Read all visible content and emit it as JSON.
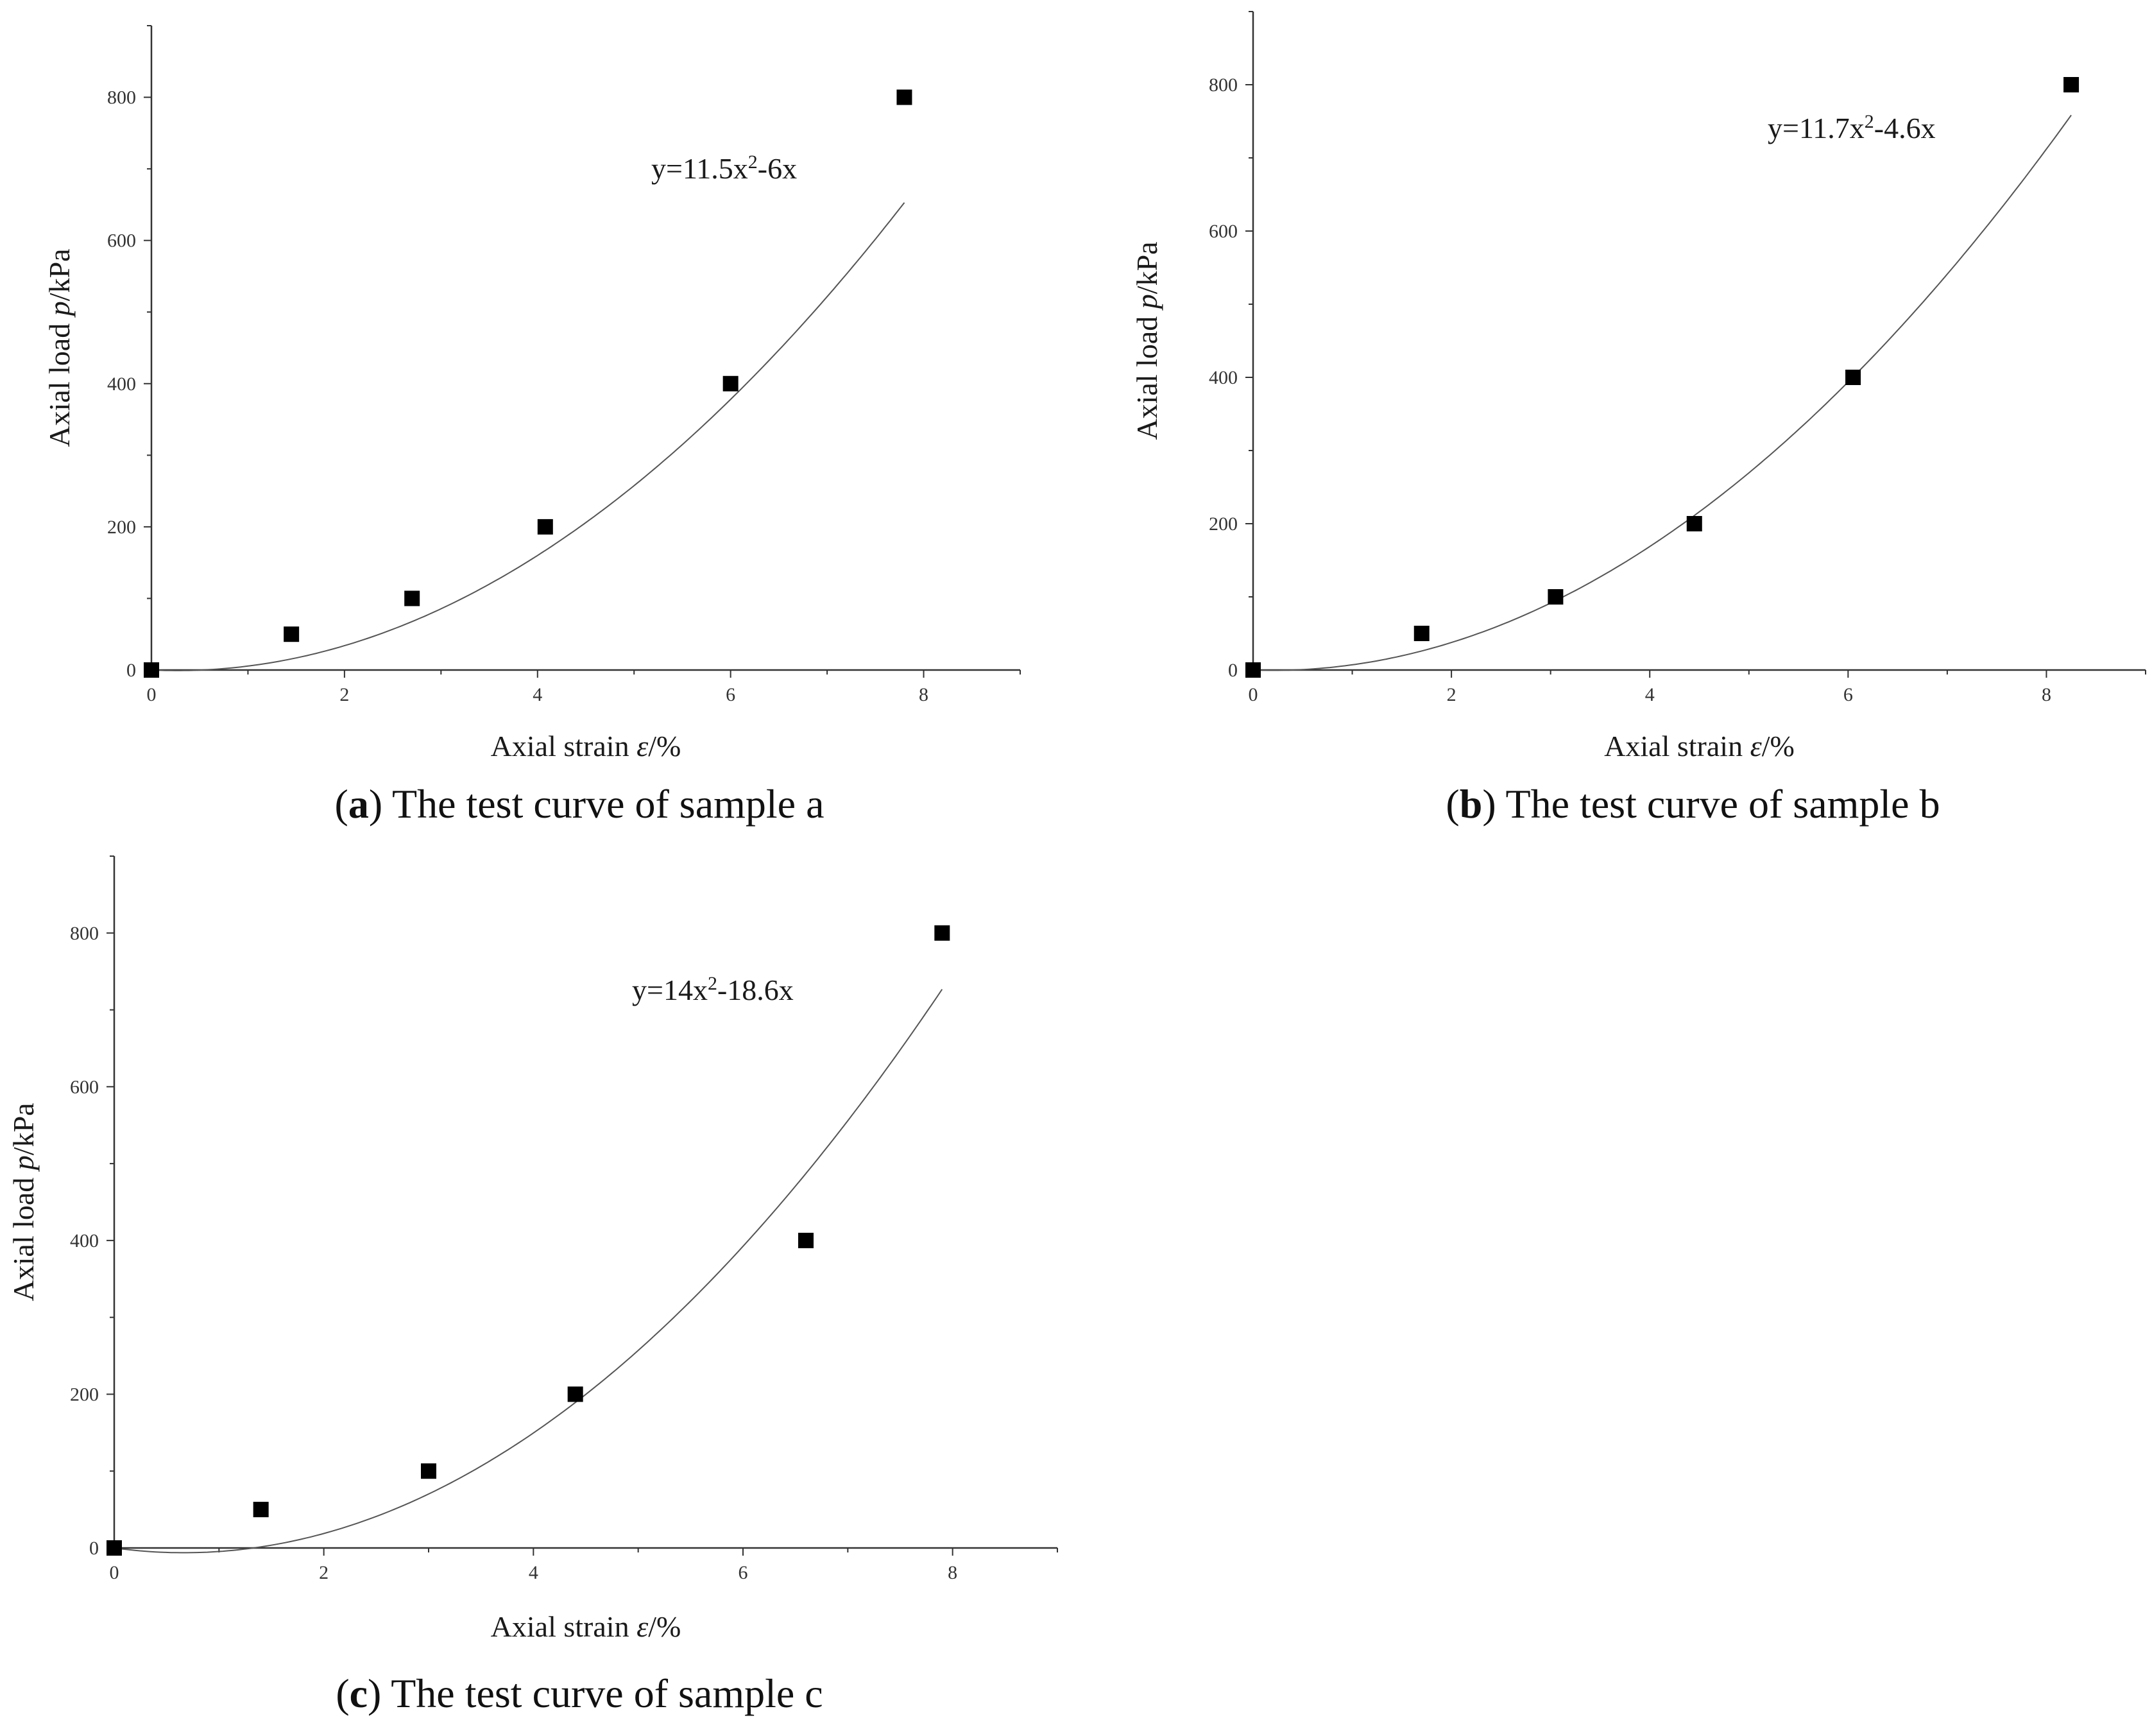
{
  "chart_data": [
    {
      "type": "scatter",
      "caption": {
        "letter": "a",
        "text": " The test curve of sample a"
      },
      "xlabel": {
        "main": "Axial strain ",
        "var": "ε",
        "unit": "/%"
      },
      "ylabel": {
        "main": "Axial load ",
        "var": "p",
        "unit": "/kPa"
      },
      "equation": {
        "prefix": "y=11.5x",
        "sup": "2",
        "suffix": "-6x"
      },
      "x_ticks": [
        0,
        2,
        4,
        6,
        8
      ],
      "y_ticks": [
        0,
        200,
        400,
        600,
        800
      ],
      "xlim": [
        0,
        9
      ],
      "ylim": [
        0,
        900
      ],
      "series": [
        {
          "x": [
            0,
            1.45,
            2.7,
            4.08,
            6.0,
            7.8
          ],
          "y": [
            0,
            50,
            100,
            200,
            400,
            800
          ]
        }
      ],
      "fit": {
        "a": 11.5,
        "b": -6,
        "x_range": [
          0,
          7.8
        ]
      }
    },
    {
      "type": "scatter",
      "caption": {
        "letter": "b",
        "text": " The test curve of sample b"
      },
      "xlabel": {
        "main": "Axial strain ",
        "var": "ε",
        "unit": "/%"
      },
      "ylabel": {
        "main": "Axial load ",
        "var": "p",
        "unit": "/kPa"
      },
      "equation": {
        "prefix": "y=11.7x",
        "sup": "2",
        "suffix": "-4.6x"
      },
      "x_ticks": [
        0,
        2,
        4,
        6,
        8
      ],
      "y_ticks": [
        0,
        200,
        400,
        600,
        800
      ],
      "xlim": [
        0,
        9
      ],
      "ylim": [
        0,
        900
      ],
      "series": [
        {
          "x": [
            0,
            1.7,
            3.05,
            4.45,
            6.05,
            8.25
          ],
          "y": [
            0,
            50,
            100,
            200,
            400,
            800
          ]
        }
      ],
      "fit": {
        "a": 11.7,
        "b": -4.6,
        "x_range": [
          0,
          8.25
        ]
      }
    },
    {
      "type": "scatter",
      "caption": {
        "letter": "c",
        "text": " The test curve of sample c"
      },
      "xlabel": {
        "main": "Axial strain ",
        "var": "ε",
        "unit": "/%"
      },
      "ylabel": {
        "main": "Axial load ",
        "var": "p",
        "unit": "/kPa"
      },
      "equation": {
        "prefix": "y=14x",
        "sup": "2",
        "suffix": "-18.6x"
      },
      "x_ticks": [
        0,
        2,
        4,
        6,
        8
      ],
      "y_ticks": [
        0,
        200,
        400,
        600,
        800
      ],
      "xlim": [
        0,
        9
      ],
      "ylim": [
        0,
        900
      ],
      "series": [
        {
          "x": [
            0,
            1.4,
            3.0,
            4.4,
            6.6,
            7.9
          ],
          "y": [
            0,
            50,
            100,
            200,
            400,
            800
          ]
        }
      ],
      "fit": {
        "a": 14,
        "b": -18.6,
        "x_range": [
          0,
          7.9
        ]
      }
    }
  ]
}
